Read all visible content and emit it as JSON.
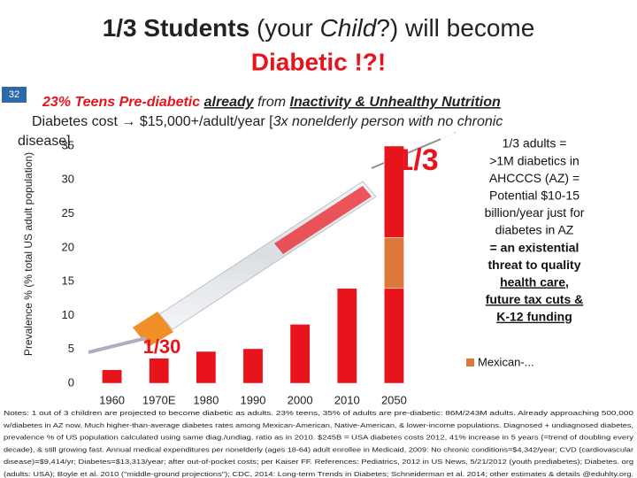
{
  "slide": {
    "number": "32",
    "title_line1": [
      "1/3 Students",
      " (your ",
      "Child",
      "?) will become"
    ],
    "title_line2": "Diabetic !?!",
    "subtitle_line1": [
      "23% Teens Pre-diabetic ",
      "already",
      " from ",
      "Inactivity & Unhealthy Nutrition"
    ],
    "subtitle_line2": [
      "Diabetes cost → $15,000+/adult/year",
      " [",
      "3x nonelderly person with no chronic"
    ],
    "subtitle_line3": "disease]",
    "side_box": [
      "1/3 adults =",
      ">1M diabetics in",
      "AHCCCS (AZ) =",
      "Potential $10-15",
      "billion/year just for",
      "diabetes in AZ",
      "= an existential",
      "threat to quality",
      "health care,",
      "future tax cuts &",
      "K-12 funding"
    ],
    "notes": [
      "Notes: 1 out of 3 children are projected to become diabetic as adults. 23% teens, 35% of adults are pre-diabetic: 86M/243M adults. Already approaching 500,000",
      "w/diabetes in AZ now. Much higher-than-average diabetes rates among Mexican-American, Native-American, & lower-income populations. Diagnosed + undiagnosed diabetes,",
      "prevalence % of US population calculated using same diag./undiag. ratio as in 2010. $245B = USA diabetes costs 2012, 41% increase in 5 years (=trend of doubling every",
      "decade), & still growing fast. Annual medical expenditures per nonelderly (ages 18-64) adult enrollee in Medicaid, 2009: No chronic conditions=$4,342/year; CVD (cardiovascular",
      "disease)=$9,414/yr; Diabetes=$13,313/year; after out-of-pocket costs; per Kaiser FF. References: Pediatrics, 2012 in US News, 5/21/2012 (youth prediabetes); Diabetes. org",
      "(adults: USA); Boyle et al. 2010 (\"middle-ground projections\"); CDC, 2014: Long-term Trends in Diabetes; Schneiderman et al. 2014; other estimates & details @eduhlty.org."
    ]
  },
  "chart_data": {
    "type": "bar",
    "stacked": true,
    "y_label": "Prevalence % (% total US adult population)",
    "categories": [
      "1960",
      "1970E",
      "1980",
      "1990",
      "2000",
      "2010",
      "2050"
    ],
    "series": [
      {
        "color": "#e8141c",
        "values": [
          2,
          3.7,
          4.7,
          5.1,
          8.7,
          14,
          14
        ]
      },
      {
        "name": "Mexican-...",
        "color": "#e0773a",
        "values": [
          null,
          null,
          null,
          null,
          null,
          null,
          7.5
        ]
      },
      {
        "color": "#e8141c",
        "values": [
          null,
          null,
          null,
          null,
          null,
          null,
          13.5
        ]
      }
    ],
    "annotations": [
      "1/3",
      "1/30"
    ],
    "ylim": [
      0,
      35
    ],
    "yticks": [
      0,
      5,
      10,
      15,
      20,
      25,
      30,
      35
    ]
  }
}
